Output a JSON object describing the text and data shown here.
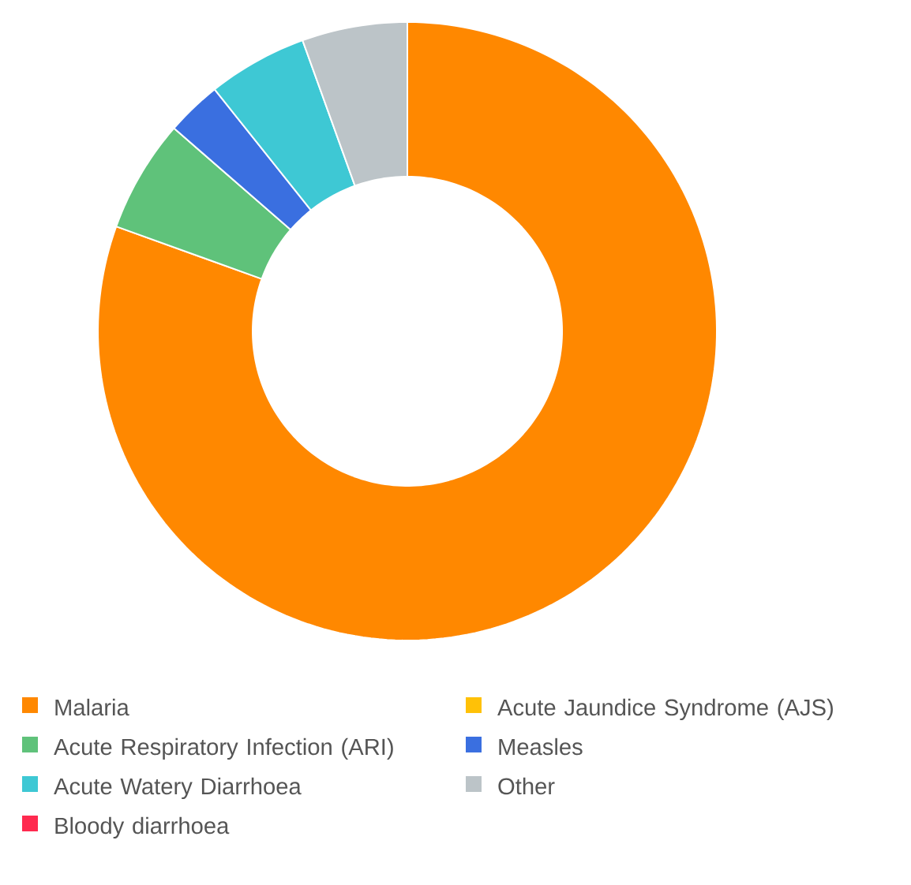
{
  "chart_data": {
    "type": "donut",
    "categories": [
      "Malaria",
      "Acute Jaundice Syndrome (AJS)",
      "Acute Respiratory Infection (ARI)",
      "Measles",
      "Acute Watery Diarrhoea",
      "Other",
      "Bloody diarrhoea"
    ],
    "values": [
      80.5,
      0,
      5.9,
      2.9,
      5.2,
      5.5,
      0
    ],
    "colors": [
      "#ff8800",
      "#ffc107",
      "#5fc27a",
      "#3a6fe0",
      "#3ec8d4",
      "#bcc4c8",
      "#ff2a4f"
    ],
    "legend": "bottom"
  }
}
